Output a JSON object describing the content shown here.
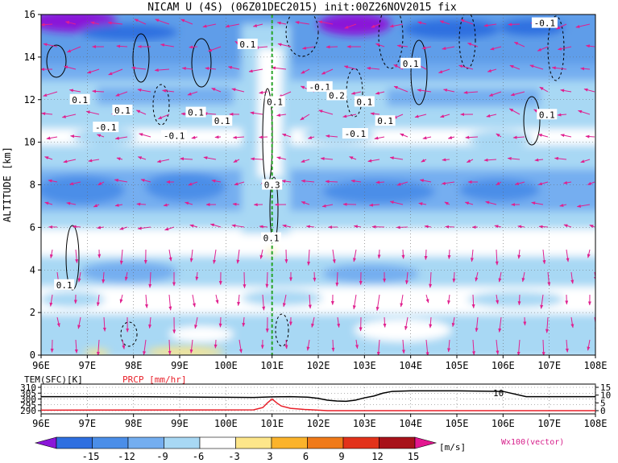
{
  "chart_data": [
    {
      "type": "heatmap",
      "title": "NICAM U (4S) (06Z01DEC2015) init:00Z26NOV2015 fix",
      "ylabel": "ALTITUDE [km]",
      "xlim": [
        96,
        108
      ],
      "ylim": [
        0,
        16
      ],
      "x_tick_labels": [
        "96E",
        "97E",
        "98E",
        "99E",
        "100E",
        "101E",
        "102E",
        "103E",
        "104E",
        "105E",
        "106E",
        "107E",
        "108E"
      ],
      "y_tick_labels": [
        "0",
        "2",
        "4",
        "6",
        "8",
        "10",
        "12",
        "14",
        "16"
      ],
      "grid": true,
      "marker_line": {
        "x": 101,
        "color": "#22aa22"
      },
      "contour_labels": [
        {
          "text": "0.1",
          "x": 100.47,
          "y": 14.6
        },
        {
          "text": "-0.1",
          "x": 106.9,
          "y": 15.6
        },
        {
          "text": "0.1",
          "x": 104.0,
          "y": 13.7
        },
        {
          "text": "-0.1",
          "x": 102.03,
          "y": 12.6
        },
        {
          "text": "0.2",
          "x": 102.4,
          "y": 12.2
        },
        {
          "text": "0.1",
          "x": 96.84,
          "y": 12.0
        },
        {
          "text": "0.1",
          "x": 97.76,
          "y": 11.5
        },
        {
          "text": "0.1",
          "x": 99.35,
          "y": 11.4
        },
        {
          "text": "0.1",
          "x": 101.06,
          "y": 11.9
        },
        {
          "text": "0.1",
          "x": 103.0,
          "y": 11.9
        },
        {
          "text": "0.1",
          "x": 103.45,
          "y": 11.0
        },
        {
          "text": "0.1",
          "x": 106.95,
          "y": 11.3
        },
        {
          "text": "-0.1",
          "x": 97.4,
          "y": 10.7
        },
        {
          "text": "0.1",
          "x": 99.92,
          "y": 11.0
        },
        {
          "text": "-0.1",
          "x": 98.88,
          "y": 10.3
        },
        {
          "text": "-0.1",
          "x": 102.8,
          "y": 10.4
        },
        {
          "text": "0.3",
          "x": 101.0,
          "y": 8.0
        },
        {
          "text": "0.1",
          "x": 100.98,
          "y": 5.5
        },
        {
          "text": "0.1",
          "x": 96.5,
          "y": 3.3
        },
        {
          "text": "10",
          "x": 105.9,
          "y": 0.0
        }
      ],
      "colorbar": {
        "levels": [
          "-15",
          "-12",
          "-9",
          "-6",
          "-3",
          "3",
          "6",
          "9",
          "12",
          "15"
        ],
        "unit": "[m/s]",
        "colors": [
          "#8a16d8",
          "#2f6fe0",
          "#4b8ee8",
          "#74aef0",
          "#a8d8f4",
          "#ffffff",
          "#fde68a",
          "#fbb32b",
          "#f07a18",
          "#e2321a",
          "#a8121a",
          "#e3168f"
        ]
      },
      "vector_label": "Wx100(vector)",
      "vector_color": "#e0208f"
    },
    {
      "type": "line",
      "xlim": [
        96,
        108
      ],
      "x_tick_labels": [
        "96E",
        "97E",
        "98E",
        "99E",
        "100E",
        "101E",
        "102E",
        "103E",
        "104E",
        "105E",
        "106E",
        "107E",
        "108E"
      ],
      "left_axis_label": "TEM(SFC)[K]",
      "right_axis_label": "PRCP [mm/hr]",
      "left_ticks": [
        "310",
        "305",
        "300",
        "295",
        "290"
      ],
      "right_ticks": [
        "15",
        "10",
        "5",
        "0"
      ],
      "ylim_left": [
        290,
        310
      ],
      "ylim_right": [
        0,
        15
      ],
      "series": [
        {
          "axis": "left",
          "color": "#000000",
          "x": [
            96,
            97,
            98,
            99,
            100,
            100.6,
            101,
            101.4,
            101.8,
            102,
            102.2,
            102.4,
            102.6,
            102.8,
            103,
            103.2,
            103.4,
            103.6,
            104,
            105,
            106,
            106.5,
            107,
            108
          ],
          "values": [
            302,
            302,
            302,
            301.7,
            301.5,
            301.3,
            301.8,
            302,
            301.5,
            300.5,
            299,
            298.3,
            298,
            299,
            301,
            302.5,
            305,
            306.5,
            307,
            307,
            306.5,
            302,
            302,
            302
          ]
        },
        {
          "axis": "right",
          "color": "#e8202a",
          "x": [
            96,
            100.6,
            100.8,
            100.9,
            101,
            101.1,
            101.2,
            101.4,
            101.7,
            102,
            102.2,
            104,
            108
          ],
          "values": [
            0.3,
            0.5,
            2,
            5,
            7.5,
            5,
            3,
            1.5,
            0.8,
            0.3,
            0,
            0,
            0
          ]
        }
      ]
    }
  ]
}
